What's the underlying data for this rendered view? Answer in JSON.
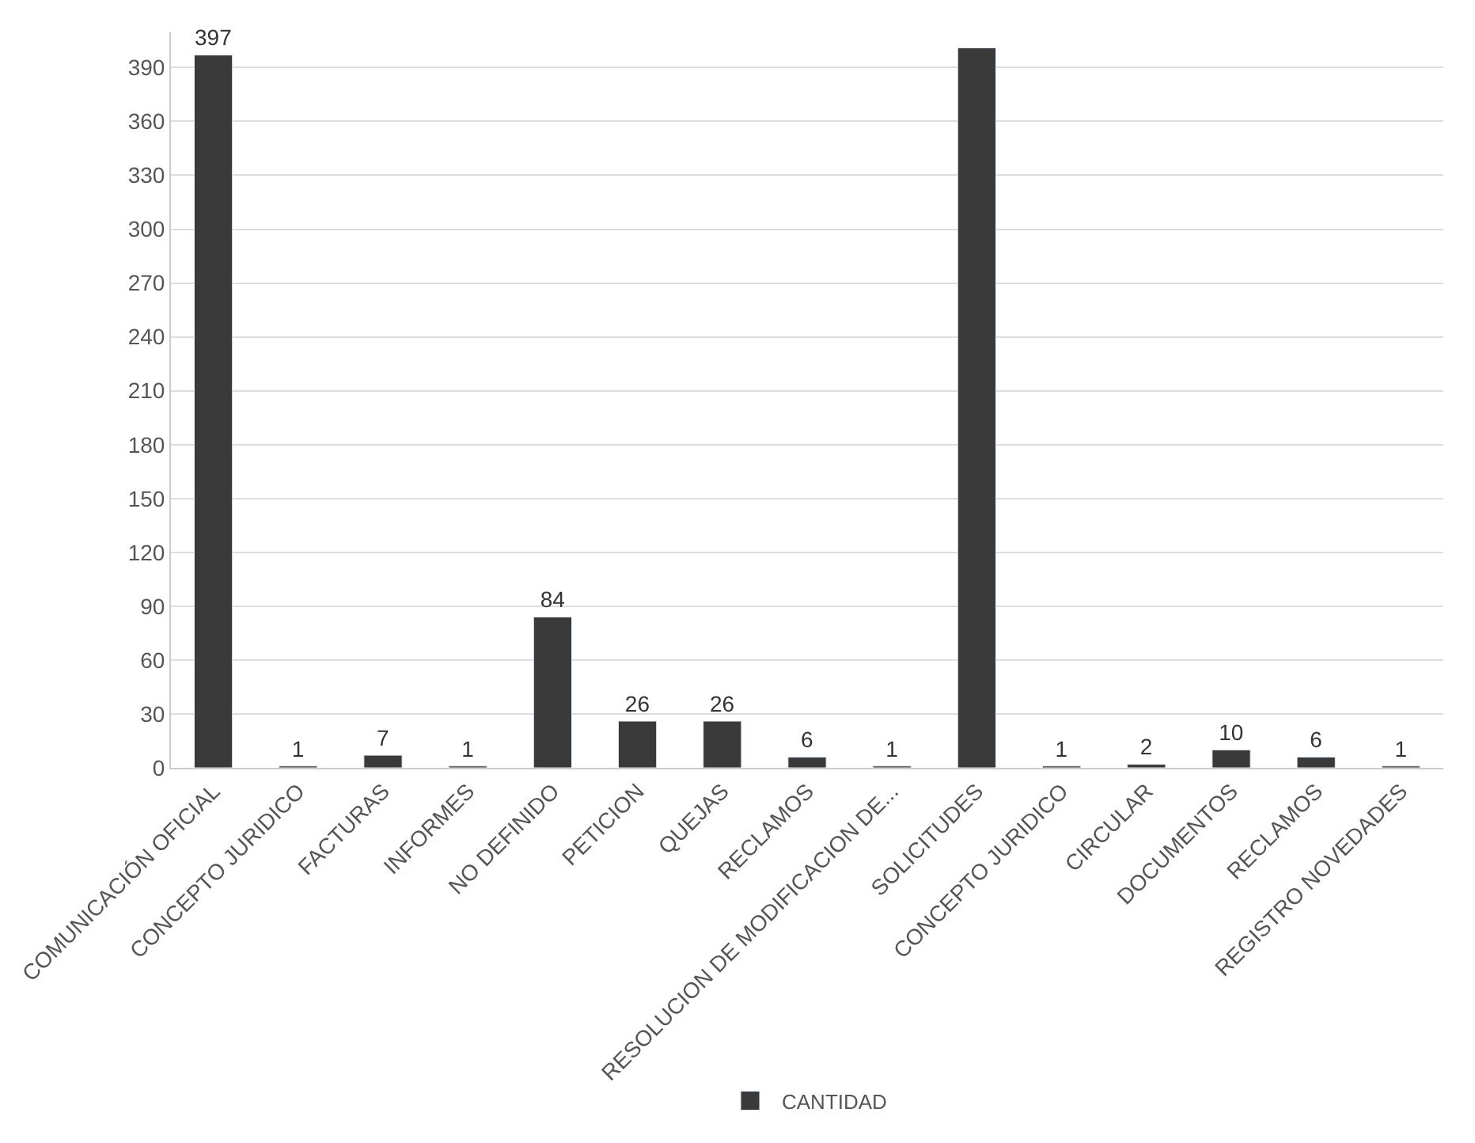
{
  "chart_data": {
    "type": "bar",
    "categories": [
      "COMUNICACIÓN OFICIAL",
      "CONCEPTO JURIDICO",
      "FACTURAS",
      "INFORMES",
      "NO DEFINIDO",
      "PETICION",
      "QUEJAS",
      "RECLAMOS",
      "RESOLUCION DE MODIFICACION DE...",
      "SOLICITUDES",
      "CONCEPTO JURIDICO",
      "CIRCULAR",
      "DOCUMENTOS",
      "RECLAMOS",
      "REGISTRO NOVEDADES"
    ],
    "series": [
      {
        "name": "CANTIDAD",
        "color": "#3a3a3a",
        "values": [
          397,
          1,
          7,
          1,
          84,
          26,
          26,
          6,
          1,
          401,
          1,
          2,
          10,
          6,
          1
        ],
        "value_labels": [
          "397",
          "1",
          "7",
          "1",
          "84",
          "26",
          "26",
          "6",
          "1",
          null,
          "1",
          "2",
          "10",
          "6",
          "1"
        ]
      }
    ],
    "ylim": [
      0,
      410
    ],
    "yticks": [
      0,
      30,
      60,
      90,
      120,
      150,
      180,
      210,
      240,
      270,
      300,
      330,
      360,
      390
    ],
    "grid": "y",
    "legend": "bottom"
  }
}
